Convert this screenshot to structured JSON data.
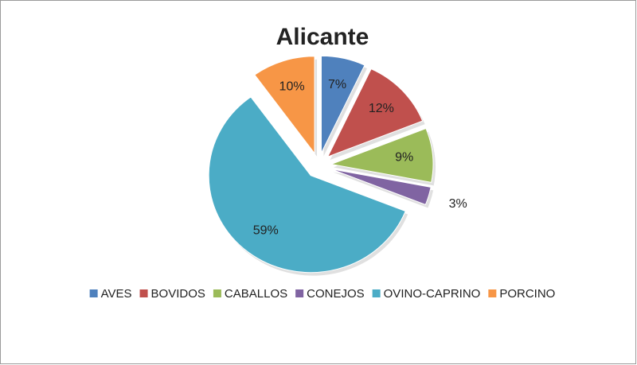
{
  "chart_data": {
    "type": "pie",
    "title": "Alicante",
    "categories": [
      "AVES",
      "BOVIDOS",
      "CABALLOS",
      "CONEJOS",
      "OVINO-CAPRINO",
      "PORCINO"
    ],
    "values": [
      7,
      12,
      9,
      3,
      59,
      10
    ],
    "value_labels": [
      "7%",
      "12%",
      "9%",
      "3%",
      "59%",
      "10%"
    ],
    "colors": [
      "#4f81bd",
      "#c0504d",
      "#9bbb59",
      "#8064a2",
      "#4bacc6",
      "#f79646"
    ],
    "legend": "bottom"
  }
}
